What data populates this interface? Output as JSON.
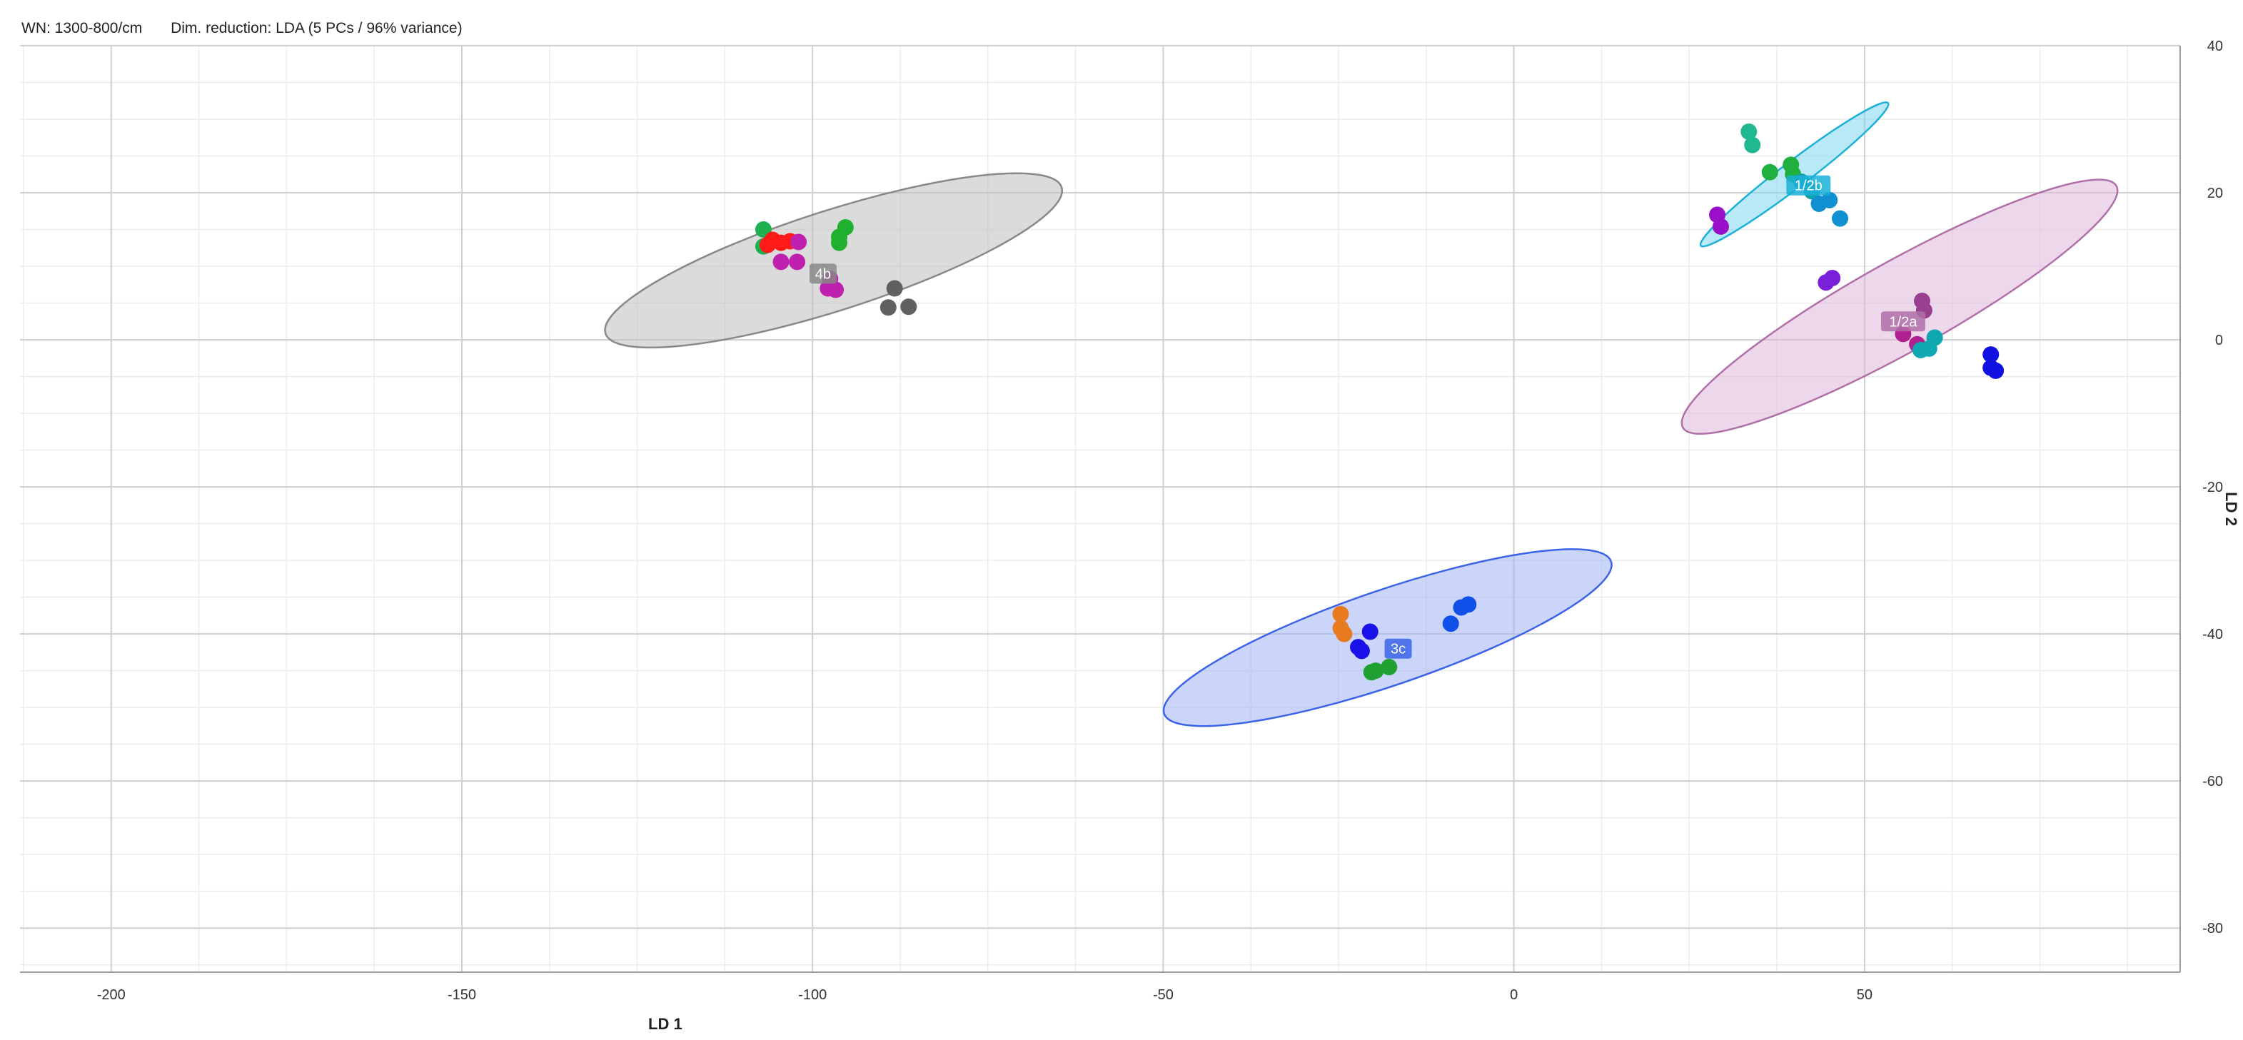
{
  "header": {
    "wn": "WN: 1300-800/cm",
    "dimred": "Dim. reduction: LDA (5 PCs / 96% variance)"
  },
  "chart_data": {
    "type": "scatter",
    "title": "",
    "xlabel": "LD 1",
    "ylabel": "LD 2",
    "xlim": [
      -213,
      95
    ],
    "ylim": [
      -86,
      40
    ],
    "xticks": [
      -200,
      -150,
      -100,
      -50,
      0,
      50
    ],
    "yticks": [
      40,
      20,
      0,
      -20,
      -40,
      -60,
      -80
    ],
    "x_minor_step": 12.5,
    "y_minor_step": 5,
    "grid": true,
    "y_axis_side": "right",
    "clusters": [
      {
        "label": "4b",
        "color": "#888888",
        "fill": "#bdbdbd",
        "cx": -97,
        "cy": 10.8,
        "rx": 34,
        "ry": 6.8,
        "angle_deg": -17,
        "label_x": -98.5,
        "label_y": 9
      },
      {
        "label": "1/2b",
        "color": "#1ab0d8",
        "fill": "#7fd6ee",
        "cx": 40,
        "cy": 22.5,
        "rx": 16.5,
        "ry": 1.8,
        "angle_deg": -36,
        "label_x": 42,
        "label_y": 21
      },
      {
        "label": "1/2a",
        "color": "#b06fa8",
        "fill": "#ddb8d8",
        "cx": 55,
        "cy": 4.5,
        "rx": 35,
        "ry": 6.2,
        "angle_deg": -28,
        "label_x": 55.5,
        "label_y": 2.5
      },
      {
        "label": "3c",
        "color": "#3b63e8",
        "fill": "#9fb3f4",
        "cx": -18,
        "cy": -40.5,
        "rx": 33.5,
        "ry": 6.5,
        "angle_deg": -18,
        "label_x": -16.5,
        "label_y": -42
      }
    ],
    "points": [
      {
        "x": -107,
        "y": 15,
        "color": "#1fb050"
      },
      {
        "x": -107,
        "y": 12.7,
        "color": "#1fb050"
      },
      {
        "x": -105.7,
        "y": 13.6,
        "color": "#ff1a1a"
      },
      {
        "x": -106.4,
        "y": 12.9,
        "color": "#ff1a1a"
      },
      {
        "x": -104.5,
        "y": 13.2,
        "color": "#ff1a1a"
      },
      {
        "x": -103.2,
        "y": 13.4,
        "color": "#ff1a1a"
      },
      {
        "x": -102,
        "y": 13.3,
        "color": "#c020b0"
      },
      {
        "x": -104.5,
        "y": 10.6,
        "color": "#c020b0"
      },
      {
        "x": -102.2,
        "y": 10.6,
        "color": "#c020b0"
      },
      {
        "x": -96.2,
        "y": 14,
        "color": "#20b030"
      },
      {
        "x": -96.2,
        "y": 13.2,
        "color": "#20b030"
      },
      {
        "x": -95.3,
        "y": 15.3,
        "color": "#20b030"
      },
      {
        "x": -97.5,
        "y": 8.3,
        "color": "#c020b0"
      },
      {
        "x": -97.8,
        "y": 7,
        "color": "#c020b0"
      },
      {
        "x": -96.7,
        "y": 6.8,
        "color": "#c020b0"
      },
      {
        "x": -88.3,
        "y": 7,
        "color": "#606060"
      },
      {
        "x": -89.2,
        "y": 4.4,
        "color": "#606060"
      },
      {
        "x": -86.3,
        "y": 4.5,
        "color": "#606060"
      },
      {
        "x": 33.5,
        "y": 28.3,
        "color": "#20b890"
      },
      {
        "x": 34,
        "y": 26.5,
        "color": "#20b890"
      },
      {
        "x": 36.5,
        "y": 22.8,
        "color": "#20b040"
      },
      {
        "x": 39.5,
        "y": 23.8,
        "color": "#20b040"
      },
      {
        "x": 39.8,
        "y": 22.5,
        "color": "#20b040"
      },
      {
        "x": 41,
        "y": 21.5,
        "color": "#10a0a8"
      },
      {
        "x": 42.5,
        "y": 20.2,
        "color": "#10a0a8"
      },
      {
        "x": 43.5,
        "y": 18.5,
        "color": "#1090d0"
      },
      {
        "x": 45,
        "y": 19,
        "color": "#1090d0"
      },
      {
        "x": 46.5,
        "y": 16.5,
        "color": "#1090d0"
      },
      {
        "x": 29,
        "y": 17,
        "color": "#9a10c8"
      },
      {
        "x": 29.5,
        "y": 15.4,
        "color": "#9a10c8"
      },
      {
        "x": 44.5,
        "y": 7.8,
        "color": "#7a20d8"
      },
      {
        "x": 45.4,
        "y": 8.4,
        "color": "#7a20d8"
      },
      {
        "x": 58.2,
        "y": 5.3,
        "color": "#9a4090"
      },
      {
        "x": 58.5,
        "y": 4,
        "color": "#9a4090"
      },
      {
        "x": 55.5,
        "y": 0.8,
        "color": "#b02090"
      },
      {
        "x": 57.5,
        "y": -0.6,
        "color": "#b02090"
      },
      {
        "x": 58,
        "y": -1.4,
        "color": "#10a8b0"
      },
      {
        "x": 59.2,
        "y": -1.2,
        "color": "#10a8b0"
      },
      {
        "x": 60,
        "y": 0.3,
        "color": "#10a8b0"
      },
      {
        "x": 68,
        "y": -2,
        "color": "#1010e0"
      },
      {
        "x": 68,
        "y": -3.8,
        "color": "#1010e0"
      },
      {
        "x": 68.7,
        "y": -4.2,
        "color": "#1010e0"
      },
      {
        "x": -24.7,
        "y": -37.3,
        "color": "#e87a20"
      },
      {
        "x": -24.7,
        "y": -39.2,
        "color": "#e87a20"
      },
      {
        "x": -24.2,
        "y": -40,
        "color": "#e87a20"
      },
      {
        "x": -22.2,
        "y": -41.8,
        "color": "#1a10e8"
      },
      {
        "x": -21.7,
        "y": -42.3,
        "color": "#1a10e8"
      },
      {
        "x": -20.5,
        "y": -39.7,
        "color": "#1a10e8"
      },
      {
        "x": -17.8,
        "y": -44.5,
        "color": "#20a030"
      },
      {
        "x": -19.7,
        "y": -45,
        "color": "#20a030"
      },
      {
        "x": -20.3,
        "y": -45.2,
        "color": "#20a030"
      },
      {
        "x": -9,
        "y": -38.6,
        "color": "#1050e8"
      },
      {
        "x": -7.5,
        "y": -36.4,
        "color": "#1050e8"
      },
      {
        "x": -6.5,
        "y": -36,
        "color": "#1050e8"
      }
    ]
  }
}
